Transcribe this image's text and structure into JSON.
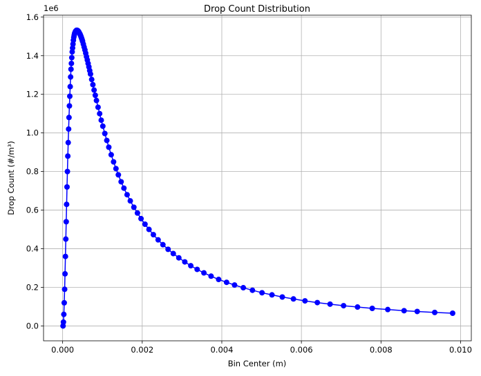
{
  "chart_data": {
    "type": "line",
    "title": "Drop Count Distribution",
    "xlabel": "Bin Center (m)",
    "ylabel": "Drop Count (#/m³)",
    "y_offset_label": "1e6",
    "xlim": [
      -0.00048,
      0.01027
    ],
    "ylim": [
      -0.077,
      1.61
    ],
    "y_scale_note": "y values in units of 1e6",
    "x_ticks": [
      0.0,
      0.002,
      0.004,
      0.006,
      0.008,
      0.01
    ],
    "x_tick_labels": [
      "0.000",
      "0.002",
      "0.004",
      "0.006",
      "0.008",
      "0.010"
    ],
    "y_ticks": [
      0.0,
      0.2,
      0.4,
      0.6,
      0.8,
      1.0,
      1.2,
      1.4,
      1.6
    ],
    "y_tick_labels": [
      "0.0",
      "0.2",
      "0.4",
      "0.6",
      "0.8",
      "1.0",
      "1.2",
      "1.4",
      "1.6"
    ],
    "grid": true,
    "series": [
      {
        "color": "#0000ff",
        "marker": "circle",
        "x": [
          1e-05,
          2e-05,
          3e-05,
          4e-05,
          5e-05,
          6e-05,
          7e-05,
          8e-05,
          9e-05,
          0.0001,
          0.00011,
          0.00012,
          0.00013,
          0.00014,
          0.00015,
          0.00016,
          0.00017,
          0.00018,
          0.00019,
          0.0002,
          0.00021,
          0.00022,
          0.00023,
          0.00024,
          0.00025,
          0.00026,
          0.00027,
          0.00028,
          0.00029,
          0.0003,
          0.00031,
          0.00032,
          0.00033,
          0.00034,
          0.00035,
          0.00036,
          0.00037,
          0.00038,
          0.00039,
          0.0004,
          0.00041,
          0.00042,
          0.00043,
          0.00044,
          0.00045,
          0.00046,
          0.00047,
          0.00048,
          0.00049,
          0.0005,
          0.00052,
          0.00054,
          0.00056,
          0.00058,
          0.0006,
          0.00062,
          0.00064,
          0.00066,
          0.00068,
          0.0007,
          0.00073,
          0.00076,
          0.00079,
          0.00082,
          0.00085,
          0.00089,
          0.00093,
          0.00097,
          0.00101,
          0.00106,
          0.00111,
          0.00116,
          0.00122,
          0.00128,
          0.00134,
          0.0014,
          0.00147,
          0.00154,
          0.00162,
          0.0017,
          0.00179,
          0.00188,
          0.00197,
          0.00207,
          0.00217,
          0.00228,
          0.0024,
          0.00252,
          0.00265,
          0.00278,
          0.00292,
          0.00307,
          0.00322,
          0.00338,
          0.00355,
          0.00373,
          0.00392,
          0.00412,
          0.00432,
          0.00454,
          0.00477,
          0.00501,
          0.00526,
          0.00552,
          0.0058,
          0.00609,
          0.0064,
          0.00672,
          0.00706,
          0.00741,
          0.00778,
          0.00817,
          0.00858,
          0.00891,
          0.00935,
          0.0098
        ],
        "y": [
          0.0,
          0.02,
          0.06,
          0.12,
          0.19,
          0.27,
          0.36,
          0.45,
          0.54,
          0.63,
          0.72,
          0.8,
          0.88,
          0.95,
          1.02,
          1.08,
          1.14,
          1.19,
          1.24,
          1.29,
          1.33,
          1.36,
          1.39,
          1.42,
          1.44,
          1.46,
          1.48,
          1.495,
          1.505,
          1.515,
          1.52,
          1.525,
          1.528,
          1.53,
          1.532,
          1.532,
          1.531,
          1.53,
          1.528,
          1.525,
          1.522,
          1.518,
          1.514,
          1.51,
          1.505,
          1.5,
          1.494,
          1.488,
          1.482,
          1.475,
          1.46,
          1.445,
          1.43,
          1.413,
          1.395,
          1.378,
          1.36,
          1.342,
          1.323,
          1.305,
          1.277,
          1.25,
          1.222,
          1.195,
          1.168,
          1.133,
          1.1,
          1.066,
          1.035,
          0.997,
          0.961,
          0.926,
          0.887,
          0.85,
          0.815,
          0.783,
          0.747,
          0.714,
          0.68,
          0.648,
          0.615,
          0.585,
          0.556,
          0.527,
          0.5,
          0.473,
          0.446,
          0.421,
          0.397,
          0.375,
          0.353,
          0.332,
          0.312,
          0.293,
          0.275,
          0.258,
          0.241,
          0.226,
          0.212,
          0.198,
          0.185,
          0.172,
          0.161,
          0.15,
          0.14,
          0.13,
          0.121,
          0.113,
          0.105,
          0.098,
          0.091,
          0.085,
          0.079,
          0.075,
          0.07,
          0.066
        ]
      }
    ]
  }
}
